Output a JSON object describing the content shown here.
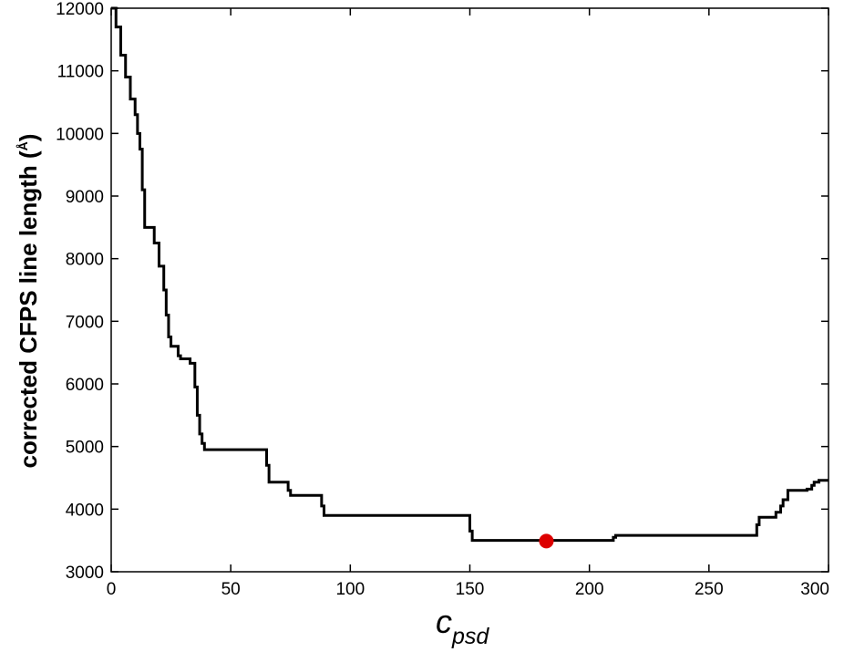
{
  "chart_data": {
    "type": "line",
    "title": "",
    "xlabel": "c",
    "xlabel_subscript": "psd",
    "ylabel": "corrected CFPS line length (",
    "ylabel_unit": "Å",
    "ylabel_close": ")",
    "xlim": [
      0,
      300
    ],
    "ylim": [
      3000,
      12000
    ],
    "x_ticks": [
      "0",
      "50",
      "100",
      "150",
      "200",
      "250",
      "300"
    ],
    "y_ticks": [
      "3000",
      "4000",
      "5000",
      "6000",
      "7000",
      "8000",
      "9000",
      "10000",
      "11000",
      "12000"
    ],
    "grid": false,
    "legend": "none",
    "line_color": "#000000",
    "marker_color": "#dd0000",
    "series": [
      {
        "x": [
          0,
          2,
          2,
          4,
          4,
          6,
          6,
          8,
          8,
          10,
          10,
          11,
          11,
          12,
          12,
          13,
          13,
          14,
          14,
          18,
          18,
          20,
          20,
          22,
          22,
          23,
          23,
          24,
          24,
          25,
          25,
          28,
          28,
          29,
          29,
          33,
          33,
          35,
          35,
          36,
          36,
          37,
          37,
          38,
          38,
          39,
          39,
          65,
          65,
          66,
          66,
          74,
          74,
          75,
          75,
          88,
          88,
          89,
          89,
          150,
          150,
          151,
          151,
          210,
          210,
          211,
          211,
          270,
          270,
          271,
          271,
          278,
          278,
          280,
          280,
          281,
          281,
          283,
          283,
          291,
          291,
          293,
          293,
          294,
          294,
          296,
          296,
          300
        ],
        "y": [
          12000,
          12000,
          11700,
          11700,
          11250,
          11250,
          10900,
          10900,
          10550,
          10550,
          10300,
          10300,
          10000,
          10000,
          9750,
          9750,
          9100,
          9100,
          8500,
          8500,
          8250,
          8250,
          7880,
          7880,
          7500,
          7500,
          7100,
          7100,
          6750,
          6750,
          6600,
          6600,
          6450,
          6450,
          6400,
          6400,
          6330,
          6330,
          5950,
          5950,
          5500,
          5500,
          5200,
          5200,
          5050,
          5050,
          4950,
          4950,
          4700,
          4700,
          4430,
          4430,
          4300,
          4300,
          4220,
          4220,
          4050,
          4050,
          3900,
          3900,
          3650,
          3650,
          3500,
          3500,
          3550,
          3550,
          3580,
          3580,
          3750,
          3750,
          3870,
          3870,
          3950,
          3950,
          4050,
          4050,
          4150,
          4150,
          4300,
          4300,
          4320,
          4320,
          4380,
          4380,
          4430,
          4430,
          4460,
          4460
        ]
      }
    ],
    "highlight_point": {
      "x": 182,
      "y": 3490
    }
  }
}
